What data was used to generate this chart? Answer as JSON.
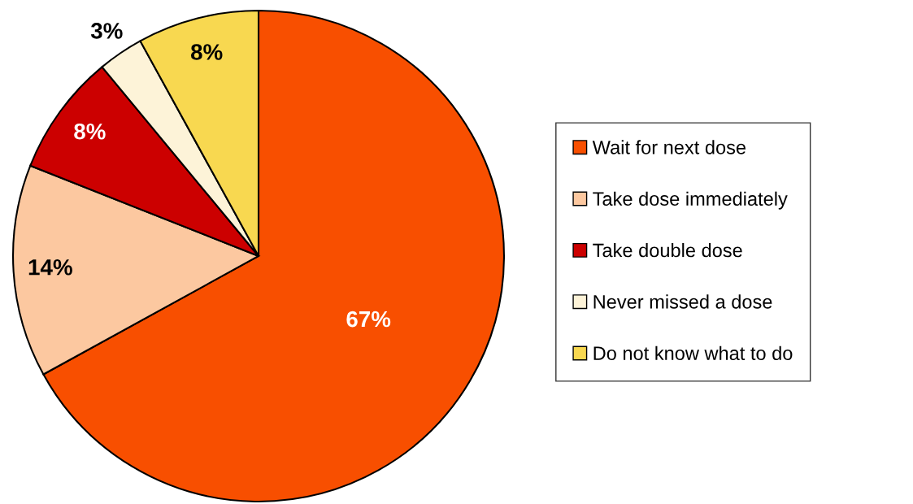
{
  "chart_data": {
    "type": "pie",
    "categories": [
      "Wait for next dose",
      "Take dose immediately",
      "Take double dose",
      "Never missed a dose",
      "Do not know what to do"
    ],
    "values": [
      67,
      14,
      8,
      3,
      8
    ],
    "colors": [
      "#f84f00",
      "#fcc8a0",
      "#cc0000",
      "#fdf3d8",
      "#f8d850"
    ],
    "value_labels": [
      "67%",
      "14%",
      "8%",
      "3%",
      "8%"
    ],
    "legend": "right"
  }
}
